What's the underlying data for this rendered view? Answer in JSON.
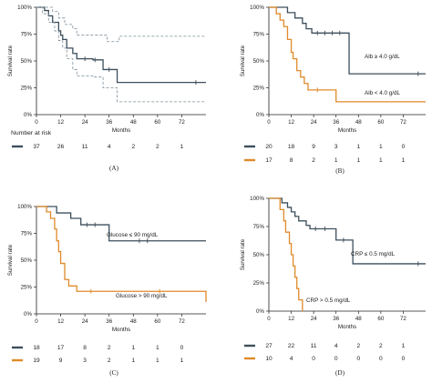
{
  "chart_data": [
    {
      "type": "line",
      "panel_label": "(A)",
      "ylabel": "Survival rate",
      "xlabel": "Months",
      "xlim": [
        0,
        84
      ],
      "ylim": [
        0,
        100
      ],
      "xticks": [
        "0",
        "12",
        "24",
        "36",
        "48",
        "60",
        "72"
      ],
      "yticks": [
        "0%",
        "25%",
        "50%",
        "75%",
        "100%"
      ],
      "risk_title": "Number at risk",
      "series": [
        {
          "color": "#3d4f5c",
          "style": "solid",
          "risk": [
            "37",
            "26",
            "11",
            "4",
            "2",
            "2",
            "1"
          ],
          "steps": [
            [
              0,
              100
            ],
            [
              4,
              97
            ],
            [
              6,
              92
            ],
            [
              8,
              86
            ],
            [
              11,
              78
            ],
            [
              12,
              74
            ],
            [
              13,
              70
            ],
            [
              15,
              62
            ],
            [
              18,
              57
            ],
            [
              20,
              52
            ],
            [
              28,
              51
            ],
            [
              33,
              42
            ],
            [
              40,
              30
            ],
            [
              84,
              30
            ]
          ],
          "censors": [
            [
              24,
              52
            ],
            [
              29,
              51
            ],
            [
              36,
              42
            ],
            [
              79,
              30
            ]
          ]
        },
        {
          "color": "#7a8b96",
          "style": "dashed",
          "steps": [
            [
              0,
              100
            ],
            [
              5,
              100
            ],
            [
              8,
              96
            ],
            [
              11,
              90
            ],
            [
              14,
              84
            ],
            [
              18,
              80
            ],
            [
              20,
              74
            ],
            [
              33,
              74
            ],
            [
              35,
              68
            ],
            [
              40,
              68
            ],
            [
              41,
              73
            ],
            [
              84,
              73
            ]
          ],
          "censors": []
        },
        {
          "color": "#7a8b96",
          "style": "dashed",
          "steps": [
            [
              0,
              100
            ],
            [
              3,
              94
            ],
            [
              6,
              86
            ],
            [
              9,
              78
            ],
            [
              11,
              69
            ],
            [
              13,
              62
            ],
            [
              15,
              52
            ],
            [
              18,
              42
            ],
            [
              20,
              36
            ],
            [
              28,
              35
            ],
            [
              33,
              25
            ],
            [
              40,
              12
            ],
            [
              84,
              12
            ]
          ],
          "censors": []
        }
      ]
    },
    {
      "type": "line",
      "panel_label": "(B)",
      "ylabel": "Survival rate",
      "xlabel": "Months",
      "xlim": [
        0,
        84
      ],
      "ylim": [
        0,
        100
      ],
      "xticks": [
        "0",
        "12",
        "24",
        "36",
        "48",
        "60",
        "72"
      ],
      "yticks": [
        "0%",
        "25%",
        "50%",
        "75%",
        "100%"
      ],
      "annotations": [
        "Alb ≥ 4.0 g/dL",
        "Alb < 4.0 g/dL"
      ],
      "series": [
        {
          "name": "Alb ≥ 4.0 g/dL",
          "color": "#3d4f5c",
          "style": "solid",
          "risk": [
            "20",
            "18",
            "9",
            "3",
            "1",
            "1",
            "0"
          ],
          "steps": [
            [
              0,
              100
            ],
            [
              10,
              95
            ],
            [
              14,
              90
            ],
            [
              18,
              85
            ],
            [
              20,
              80
            ],
            [
              23,
              76
            ],
            [
              42,
              76
            ],
            [
              43,
              38
            ],
            [
              84,
              38
            ]
          ],
          "censors": [
            [
              26,
              76
            ],
            [
              30,
              76
            ],
            [
              34,
              76
            ],
            [
              38,
              76
            ],
            [
              80,
              38
            ]
          ]
        },
        {
          "name": "Alb < 4.0 g/dL",
          "color": "#e08a2a",
          "style": "solid",
          "risk": [
            "17",
            "8",
            "2",
            "1",
            "1",
            "1",
            "1"
          ],
          "steps": [
            [
              0,
              100
            ],
            [
              4,
              94
            ],
            [
              6,
              88
            ],
            [
              8,
              82
            ],
            [
              10,
              70
            ],
            [
              12,
              58
            ],
            [
              13,
              52
            ],
            [
              15,
              41
            ],
            [
              17,
              35
            ],
            [
              19,
              29
            ],
            [
              21,
              23
            ],
            [
              34,
              23
            ],
            [
              36,
              12
            ],
            [
              84,
              12
            ]
          ],
          "censors": [
            [
              26,
              23
            ]
          ]
        }
      ]
    },
    {
      "type": "line",
      "panel_label": "(C)",
      "ylabel": "Survival rate",
      "xlabel": "Months",
      "xlim": [
        0,
        84
      ],
      "ylim": [
        0,
        100
      ],
      "xticks": [
        "0",
        "12",
        "24",
        "36",
        "48",
        "60",
        "72"
      ],
      "yticks": [
        "0%",
        "25%",
        "50%",
        "75%",
        "100%"
      ],
      "annotations": [
        "Glucose ≤ 90 mg/dL",
        "Glucose > 90 mg/dL"
      ],
      "series": [
        {
          "name": "Glucose ≤ 90 mg/dL",
          "color": "#3d4f5c",
          "style": "solid",
          "risk": [
            "18",
            "17",
            "8",
            "2",
            "1",
            "1",
            "0"
          ],
          "steps": [
            [
              0,
              100
            ],
            [
              10,
              94
            ],
            [
              17,
              89
            ],
            [
              22,
              83
            ],
            [
              33,
              83
            ],
            [
              36,
              68
            ],
            [
              84,
              68
            ]
          ],
          "censors": [
            [
              25,
              83
            ],
            [
              29,
              83
            ],
            [
              51,
              68
            ],
            [
              55,
              68
            ]
          ]
        },
        {
          "name": "Glucose > 90 mg/dL",
          "color": "#e08a2a",
          "style": "solid",
          "risk": [
            "19",
            "9",
            "3",
            "2",
            "1",
            "1",
            "1"
          ],
          "steps": [
            [
              0,
              100
            ],
            [
              5,
              95
            ],
            [
              7,
              89
            ],
            [
              9,
              79
            ],
            [
              10,
              68
            ],
            [
              11,
              58
            ],
            [
              12,
              47
            ],
            [
              14,
              32
            ],
            [
              16,
              26
            ],
            [
              20,
              21
            ],
            [
              84,
              21
            ],
            [
              84,
              11
            ]
          ],
          "censors": [
            [
              27,
              21
            ],
            [
              61,
              21
            ]
          ]
        }
      ]
    },
    {
      "type": "line",
      "panel_label": "(D)",
      "ylabel": "Survival rate",
      "xlabel": "Months",
      "xlim": [
        0,
        84
      ],
      "ylim": [
        0,
        100
      ],
      "xticks": [
        "0",
        "12",
        "24",
        "36",
        "48",
        "60",
        "72"
      ],
      "yticks": [
        "0%",
        "25%",
        "50%",
        "75%",
        "100%"
      ],
      "annotations": [
        "CRP ≤ 0.5 mg/dL",
        "CRP > 0.5 mg/dL"
      ],
      "series": [
        {
          "name": "CRP ≤ 0.5 mg/dL",
          "color": "#3d4f5c",
          "style": "solid",
          "risk": [
            "27",
            "22",
            "11",
            "4",
            "2",
            "2",
            "1"
          ],
          "steps": [
            [
              0,
              100
            ],
            [
              7,
              96
            ],
            [
              10,
              92
            ],
            [
              12,
              88
            ],
            [
              14,
              84
            ],
            [
              16,
              80
            ],
            [
              20,
              76
            ],
            [
              22,
              73
            ],
            [
              34,
              73
            ],
            [
              36,
              63
            ],
            [
              43,
              63
            ],
            [
              45,
              42
            ],
            [
              84,
              42
            ]
          ],
          "censors": [
            [
              25,
              73
            ],
            [
              30,
              73
            ],
            [
              40,
              63
            ],
            [
              80,
              42
            ]
          ]
        },
        {
          "name": "CRP > 0.5 mg/dL",
          "color": "#e08a2a",
          "style": "solid",
          "risk": [
            "10",
            "4",
            "0",
            "0",
            "0",
            "0",
            "0"
          ],
          "steps": [
            [
              0,
              100
            ],
            [
              6,
              90
            ],
            [
              8,
              80
            ],
            [
              9,
              70
            ],
            [
              11,
              60
            ],
            [
              12,
              50
            ],
            [
              13,
              40
            ],
            [
              14,
              30
            ],
            [
              15,
              20
            ],
            [
              16,
              10
            ],
            [
              18,
              0
            ]
          ],
          "censors": []
        }
      ]
    }
  ]
}
